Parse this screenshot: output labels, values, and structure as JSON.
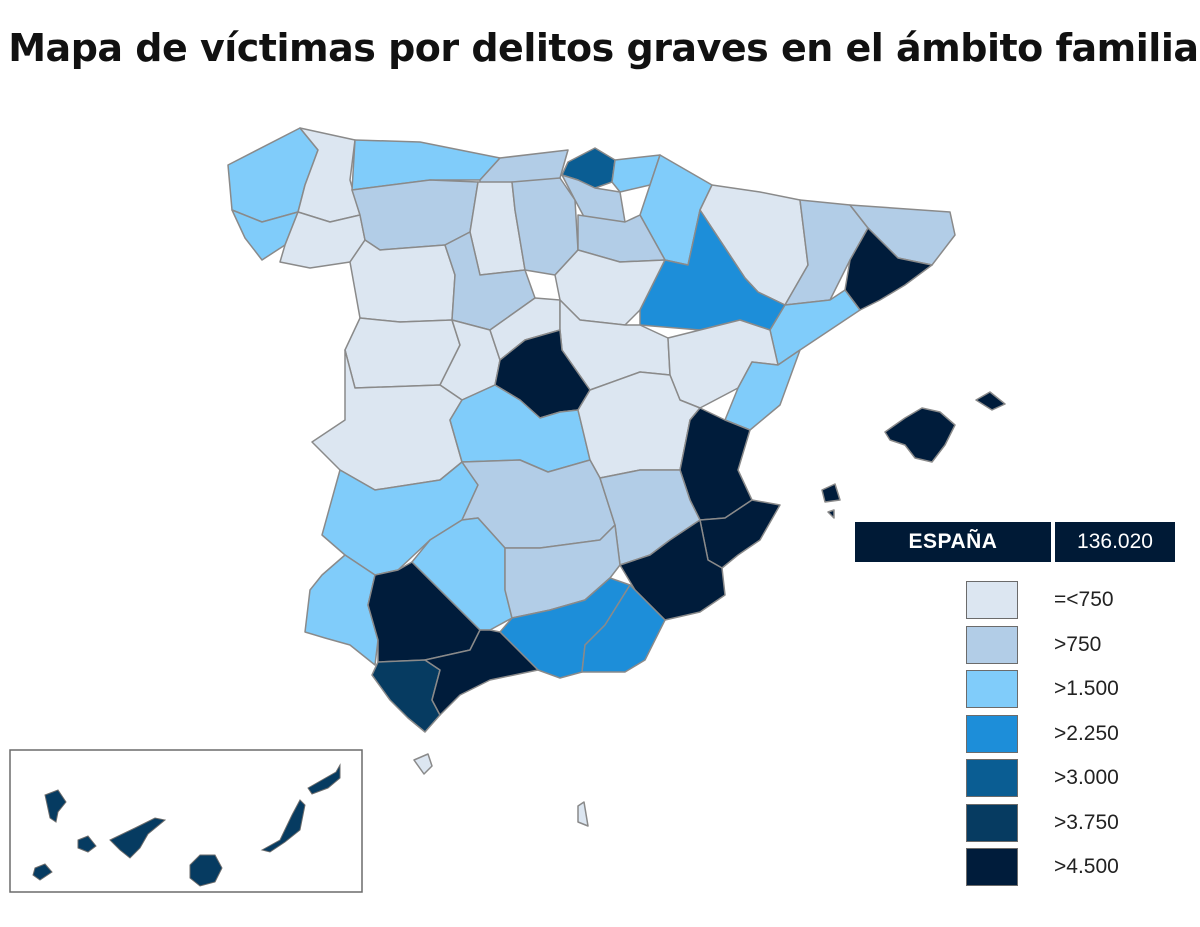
{
  "title": "Mapa de víctimas por delitos graves en el ámbito familiar",
  "total": {
    "label": "ESPAÑA",
    "value": "136.020"
  },
  "legend": [
    {
      "label": "=<750",
      "color": "#dce6f1"
    },
    {
      "label": ">750",
      "color": "#b2cde7"
    },
    {
      "label": ">1.500",
      "color": "#80ccfa"
    },
    {
      "label": ">2.250",
      "color": "#1d8ed9"
    },
    {
      "label": ">3.000",
      "color": "#0a5d93"
    },
    {
      "label": ">3.750",
      "color": "#063b61"
    },
    {
      "label": ">4.500",
      "color": "#001c3b"
    }
  ],
  "provinces": [
    {
      "name": "A Coruña",
      "level": 2
    },
    {
      "name": "Lugo",
      "level": 0
    },
    {
      "name": "Asturias",
      "level": 2
    },
    {
      "name": "Cantabria",
      "level": 1
    },
    {
      "name": "Bizkaia",
      "level": 4
    },
    {
      "name": "Gipuzkoa",
      "level": 2
    },
    {
      "name": "Navarra",
      "level": 2
    },
    {
      "name": "Pontevedra",
      "level": 2
    },
    {
      "name": "Ourense",
      "level": 0
    },
    {
      "name": "León",
      "level": 1
    },
    {
      "name": "Palencia",
      "level": 0
    },
    {
      "name": "Burgos",
      "level": 1
    },
    {
      "name": "Álava",
      "level": 1
    },
    {
      "name": "La Rioja",
      "level": 1
    },
    {
      "name": "Huesca",
      "level": 0
    },
    {
      "name": "Lleida",
      "level": 1
    },
    {
      "name": "Girona",
      "level": 1
    },
    {
      "name": "Barcelona",
      "level": 6
    },
    {
      "name": "Zamora",
      "level": 0
    },
    {
      "name": "Valladolid",
      "level": 1
    },
    {
      "name": "Soria",
      "level": 0
    },
    {
      "name": "Zaragoza",
      "level": 3
    },
    {
      "name": "Tarragona",
      "level": 2
    },
    {
      "name": "Salamanca",
      "level": 0
    },
    {
      "name": "Ávila",
      "level": 0
    },
    {
      "name": "Segovia",
      "level": 0
    },
    {
      "name": "Guadalajara",
      "level": 0
    },
    {
      "name": "Teruel",
      "level": 0
    },
    {
      "name": "Castellón",
      "level": 2
    },
    {
      "name": "Madrid",
      "level": 6
    },
    {
      "name": "Cáceres",
      "level": 0
    },
    {
      "name": "Toledo",
      "level": 2
    },
    {
      "name": "Cuenca",
      "level": 0
    },
    {
      "name": "Valencia",
      "level": 6
    },
    {
      "name": "Badajoz",
      "level": 2
    },
    {
      "name": "Ciudad Real",
      "level": 1
    },
    {
      "name": "Albacete",
      "level": 1
    },
    {
      "name": "Alicante",
      "level": 6
    },
    {
      "name": "Murcia",
      "level": 6
    },
    {
      "name": "Huelva",
      "level": 2
    },
    {
      "name": "Sevilla",
      "level": 6
    },
    {
      "name": "Córdoba",
      "level": 2
    },
    {
      "name": "Jaén",
      "level": 1
    },
    {
      "name": "Granada",
      "level": 3
    },
    {
      "name": "Almería",
      "level": 3
    },
    {
      "name": "Cádiz",
      "level": 5
    },
    {
      "name": "Málaga",
      "level": 6
    },
    {
      "name": "Ceuta",
      "level": 0
    },
    {
      "name": "Melilla",
      "level": 0
    },
    {
      "name": "Illes Balears",
      "level": 6
    },
    {
      "name": "Santa Cruz de Tenerife",
      "level": 5
    },
    {
      "name": "Las Palmas",
      "level": 5
    }
  ]
}
